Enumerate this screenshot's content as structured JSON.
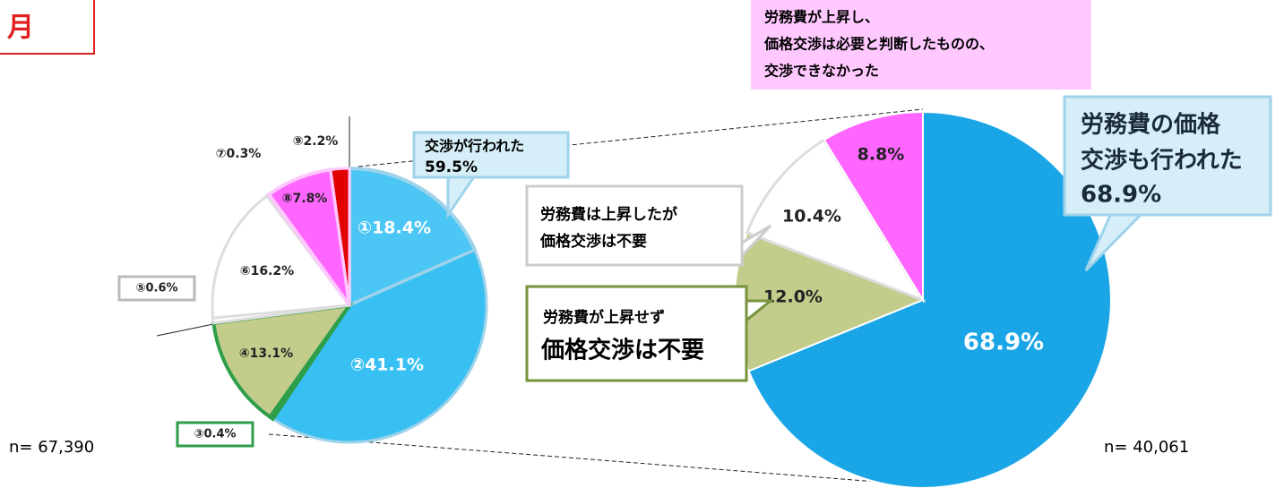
{
  "page": {
    "label": "月"
  },
  "chart_data": [
    {
      "type": "pie",
      "values": [
        18.4,
        41.1,
        0.4,
        13.1,
        0.6,
        16.2,
        0.3,
        7.8,
        2.2
      ],
      "value_labels": [
        "①18.4%",
        "②41.1%",
        "③0.4%",
        "④13.1%",
        "⑤0.6%",
        "⑥16.2%",
        "⑦0.3%",
        "⑧7.8%",
        "⑨2.2%"
      ],
      "colors": [
        "#4cc6f4",
        "#38c0f2",
        "#ffffff",
        "#c4cc8c",
        "#ffffff",
        "#ffffff",
        "#ffffff",
        "#ff66ff",
        "#e00000"
      ],
      "note": "n= 67,390",
      "annotations": [
        {
          "lines": [
            "交渉が行われた",
            "59.5%"
          ]
        }
      ]
    },
    {
      "type": "pie",
      "values": [
        68.9,
        12.0,
        10.4,
        8.8
      ],
      "value_labels": [
        "68.9%",
        "12.0%",
        "10.4%",
        "8.8%"
      ],
      "colors": [
        "#1aa6e6",
        "#c4cc8c",
        "#ffffff",
        "#ff66ff"
      ],
      "note": "n= 40,061",
      "annotations": [
        {
          "lines": [
            "労務費が上昇し、",
            "価格交渉は必要と判断したものの、",
            "交渉できなかった"
          ]
        },
        {
          "lines": [
            "労務費の価格",
            "交渉も行われた",
            "68.9%"
          ]
        },
        {
          "lines": [
            "労務費は上昇したが",
            "価格交渉は不要"
          ]
        },
        {
          "lines": [
            "労務費が上昇せず",
            "価格交渉は不要"
          ]
        }
      ]
    }
  ]
}
